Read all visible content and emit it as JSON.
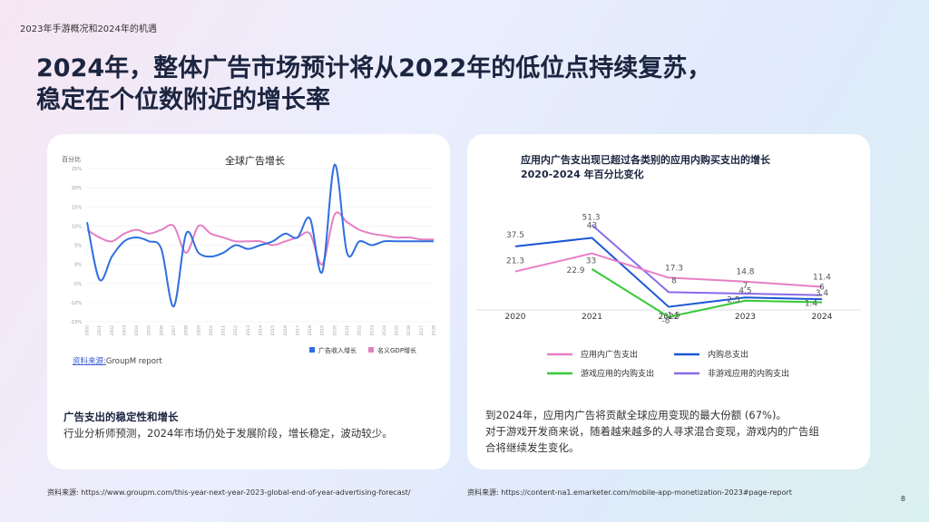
{
  "deck_title": "2023年手游概况和2024年的机遇",
  "slide_title": [
    "2024年，整体广告市场预计将从2022年的低位点持续复苏，",
    "稳定在个位数附近的增长率"
  ],
  "left": {
    "subheading": "广告支出的稳定性和增长",
    "body": "行业分析师预测，2024年市场仍处于发展阶段，增长稳定，波动较少。",
    "source_prefix": "资料来源:",
    "source_name": "GroupM report",
    "footnote": "资料来源: https://www.groupm.com/this-year-next-year-2023-global-end-of-year-advertising-forecast/"
  },
  "right": {
    "body": [
      "到2024年，应用内广告将贡献全球应用变现的最大份额 (67%)。",
      "对于游戏开发商来说，随着越来越多的人寻求混合变现，游戏内的广告组",
      "合将继续发生变化。"
    ],
    "footnote": "资料来源: https://content-na1.emarketer.com/mobile-app-monetization-2023#page-report"
  },
  "page_number": "8",
  "chart_data": [
    {
      "type": "line",
      "title": "全球广告增长",
      "ylabel": "百分比",
      "ylim": [
        -15,
        25
      ],
      "yticks": [
        "25%",
        "20%",
        "15%",
        "10%",
        "5%",
        "0%",
        "-5%",
        "-10%",
        "-15%"
      ],
      "x": [
        "2000",
        "2001",
        "2002",
        "2003",
        "2004",
        "2005",
        "2006",
        "2007",
        "2008",
        "2009",
        "2010",
        "2011",
        "2012",
        "2013",
        "2014",
        "2015",
        "2016",
        "2017",
        "2018",
        "2019",
        "2020",
        "2021",
        "2022",
        "2023",
        "2024",
        "2025",
        "2026",
        "2027",
        "2028"
      ],
      "series": [
        {
          "name": "广告收入增长",
          "color": "#2f6fe0",
          "values": [
            11,
            -4,
            2,
            6,
            7,
            6,
            4,
            -11,
            8,
            3,
            2,
            3,
            5,
            4,
            5,
            6,
            8,
            7,
            12,
            -2,
            26,
            3,
            6,
            5,
            6,
            6,
            6,
            6,
            6
          ]
        },
        {
          "name": "名义GDP增长",
          "color": "#e37fc4",
          "values": [
            9,
            7,
            6,
            8,
            9,
            8,
            9,
            10,
            3,
            10,
            8,
            7,
            6,
            6,
            6,
            5,
            6,
            7,
            8,
            0,
            13,
            11,
            9,
            8,
            7.5,
            7,
            7,
            6.5,
            6.5
          ]
        }
      ],
      "legend": "bottom-right"
    },
    {
      "type": "line",
      "title": [
        "应用内广告支出现已超过各类别的应用内购买支出的增长",
        "2020-2024 年百分比变化"
      ],
      "x": [
        "2020",
        "2021",
        "2022",
        "2023",
        "2024"
      ],
      "ylim": [
        -10,
        55
      ],
      "series": [
        {
          "name": "应用内广告支出",
          "color": "#e87ec7",
          "values": [
            21.3,
            33,
            17.3,
            14.8,
            11.4
          ],
          "labels": [
            "21.3",
            "33",
            "17.3",
            "14.8",
            "11.4"
          ]
        },
        {
          "name": "内购总支出",
          "color": "#1a56d6",
          "values": [
            37.5,
            43,
            -1.5,
            4.5,
            3.4
          ],
          "labels": [
            "37.5",
            "43",
            "-1.5",
            "4.5",
            "3.4"
          ]
        },
        {
          "name": "游戏应用的内购支出",
          "color": "#35c935",
          "values": [
            null,
            22.9,
            -8,
            2.5,
            1.4
          ],
          "labels": [
            "",
            "22.9",
            "-8",
            "2.5",
            "1.4"
          ]
        },
        {
          "name": "非游戏应用的内购支出",
          "color": "#8a6be8",
          "values": [
            null,
            51.3,
            8,
            7,
            6
          ],
          "labels": [
            "",
            "51.3",
            "8",
            "7",
            "6"
          ]
        }
      ],
      "legend": "bottom"
    }
  ]
}
